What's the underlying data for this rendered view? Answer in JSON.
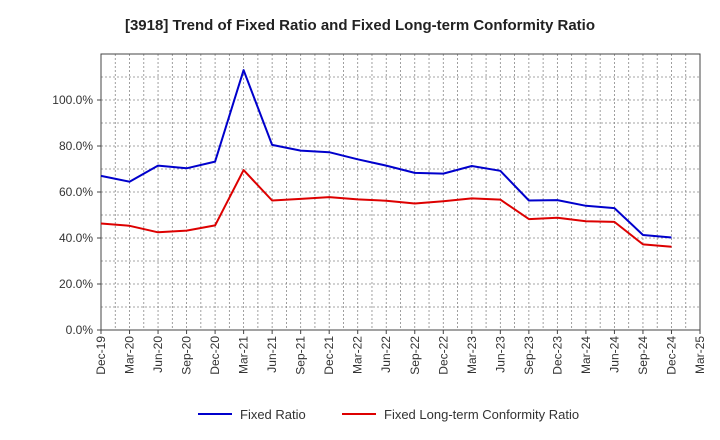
{
  "chart_data": {
    "type": "line",
    "title": "[3918]  Trend of Fixed Ratio and Fixed Long-term Conformity Ratio",
    "xlabel": "",
    "ylabel": "",
    "ylim": [
      0,
      120
    ],
    "y_ticks": [
      0,
      20,
      40,
      60,
      80,
      100
    ],
    "y_tick_labels": [
      "0.0%",
      "20.0%",
      "40.0%",
      "60.0%",
      "80.0%",
      "100.0%"
    ],
    "x_tick_labels": [
      "Dec-19",
      "Mar-20",
      "Jun-20",
      "Sep-20",
      "Dec-20",
      "Mar-21",
      "Jun-21",
      "Sep-21",
      "Dec-21",
      "Mar-22",
      "Jun-22",
      "Sep-22",
      "Dec-22",
      "Mar-23",
      "Jun-23",
      "Sep-23",
      "Dec-23",
      "Mar-24",
      "Jun-24",
      "Sep-24",
      "Dec-24",
      "Mar-25"
    ],
    "grid": true,
    "legend_position": "bottom",
    "series": [
      {
        "name": "Fixed Ratio",
        "color": "#0000cc",
        "values": [
          67.0,
          64.5,
          71.5,
          70.3,
          73.2,
          113.0,
          80.5,
          78.0,
          77.3,
          74.2,
          71.5,
          68.3,
          68.0,
          71.3,
          69.2,
          56.3,
          56.5,
          54.0,
          53.0,
          41.3,
          40.2
        ]
      },
      {
        "name": "Fixed Long-term Conformity Ratio",
        "color": "#dd0000",
        "values": [
          46.3,
          45.3,
          42.5,
          43.2,
          45.5,
          69.5,
          56.3,
          57.0,
          57.8,
          56.8,
          56.2,
          55.0,
          56.0,
          57.2,
          56.7,
          48.2,
          48.8,
          47.3,
          47.0,
          37.2,
          36.2
        ]
      }
    ]
  }
}
